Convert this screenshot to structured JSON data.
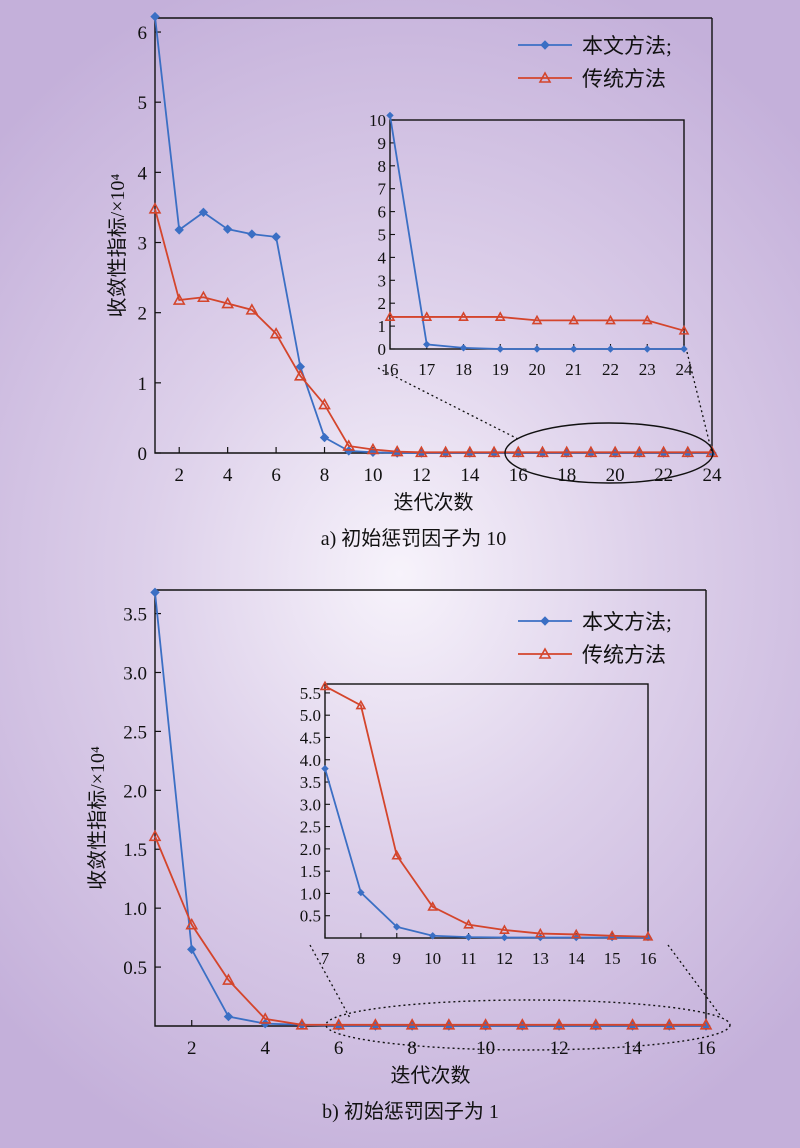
{
  "chart_data": [
    {
      "type": "line",
      "caption": "a) 初始惩罚因子为 10",
      "xlabel": "迭代次数",
      "ylabel": "收敛性指标/×10⁴",
      "xlim": [
        1,
        24
      ],
      "ylim": [
        0,
        6.2
      ],
      "xticks": [
        2,
        4,
        6,
        8,
        10,
        12,
        14,
        16,
        18,
        20,
        22,
        24
      ],
      "yticks": [
        0,
        1,
        2,
        3,
        4,
        5,
        6
      ],
      "legend_position": "top-right",
      "series": [
        {
          "name": "本文方法;",
          "color": "#3b6fc4",
          "marker": "diamond",
          "x": [
            1,
            2,
            3,
            4,
            5,
            6,
            7,
            8,
            9,
            10,
            11,
            12,
            13,
            14,
            15,
            16,
            17,
            18,
            19,
            20,
            21,
            22,
            23,
            24
          ],
          "y": [
            6.22,
            3.18,
            3.43,
            3.19,
            3.12,
            3.08,
            1.23,
            0.22,
            0.03,
            0.01,
            0,
            0,
            0,
            0,
            0,
            0,
            0,
            0,
            0,
            0,
            0,
            0,
            0,
            0
          ]
        },
        {
          "name": "传统方法",
          "color": "#d4452c",
          "marker": "triangle",
          "x": [
            1,
            2,
            3,
            4,
            5,
            6,
            7,
            8,
            9,
            10,
            11,
            12,
            13,
            14,
            15,
            16,
            17,
            18,
            19,
            20,
            21,
            22,
            23,
            24
          ],
          "y": [
            3.48,
            2.18,
            2.22,
            2.13,
            2.04,
            1.7,
            1.1,
            0.69,
            0.1,
            0.05,
            0.02,
            0.01,
            0.01,
            0.01,
            0.01,
            0.01,
            0.01,
            0.01,
            0.01,
            0.01,
            0.01,
            0.01,
            0.01,
            0.01
          ]
        }
      ],
      "inset": {
        "xlim": [
          16,
          24
        ],
        "ylim": [
          0,
          10
        ],
        "xticks": [
          16,
          17,
          18,
          19,
          20,
          21,
          22,
          23,
          24
        ],
        "yticks": [
          0,
          1,
          2,
          3,
          4,
          5,
          6,
          7,
          8,
          9,
          10
        ],
        "series": [
          {
            "name": "本文方法;",
            "x": [
              16,
              17,
              18,
              19,
              20,
              21,
              22,
              23,
              24
            ],
            "y": [
              10.2,
              0.2,
              0.05,
              0,
              0,
              0,
              0,
              0,
              0
            ]
          },
          {
            "name": "传统方法",
            "x": [
              16,
              17,
              18,
              19,
              20,
              21,
              22,
              23,
              24
            ],
            "y": [
              1.4,
              1.4,
              1.4,
              1.4,
              1.25,
              1.25,
              1.25,
              1.25,
              0.8
            ]
          }
        ]
      }
    },
    {
      "type": "line",
      "caption": "b) 初始惩罚因子为 1",
      "xlabel": "迭代次数",
      "ylabel": "收敛性指标/×10⁴",
      "xlim": [
        1,
        16
      ],
      "ylim": [
        0,
        3.7
      ],
      "xticks": [
        2,
        4,
        6,
        8,
        10,
        12,
        14,
        16
      ],
      "yticks": [
        0.5,
        1.0,
        1.5,
        2.0,
        2.5,
        3.0,
        3.5
      ],
      "legend_position": "top-right",
      "series": [
        {
          "name": "本文方法;",
          "color": "#3b6fc4",
          "marker": "diamond",
          "x": [
            1,
            2,
            3,
            4,
            5,
            6,
            7,
            8,
            9,
            10,
            11,
            12,
            13,
            14,
            15,
            16
          ],
          "y": [
            3.68,
            0.65,
            0.08,
            0.02,
            0.01,
            0,
            0,
            0,
            0,
            0,
            0,
            0,
            0,
            0,
            0,
            0
          ]
        },
        {
          "name": "传统方法",
          "color": "#d4452c",
          "marker": "triangle",
          "x": [
            1,
            2,
            3,
            4,
            5,
            6,
            7,
            8,
            9,
            10,
            11,
            12,
            13,
            14,
            15,
            16
          ],
          "y": [
            1.61,
            0.86,
            0.39,
            0.06,
            0.01,
            0.01,
            0.01,
            0.01,
            0.01,
            0.01,
            0.01,
            0.01,
            0.01,
            0.01,
            0.01,
            0.01
          ]
        }
      ],
      "inset": {
        "xlim": [
          7,
          16
        ],
        "ylim": [
          0,
          5.7
        ],
        "xticks": [
          7,
          8,
          9,
          10,
          11,
          12,
          13,
          14,
          15,
          16
        ],
        "yticks": [
          0.5,
          1.0,
          1.5,
          2.0,
          2.5,
          3.0,
          3.5,
          4.0,
          4.5,
          5.0,
          5.5
        ],
        "series": [
          {
            "name": "本文方法;",
            "x": [
              7,
              8,
              9,
              10,
              11,
              12,
              13,
              14,
              15,
              16
            ],
            "y": [
              3.8,
              1.02,
              0.25,
              0.05,
              0.02,
              0.01,
              0.01,
              0.01,
              0.01,
              0.01
            ]
          },
          {
            "name": "传统方法",
            "x": [
              7,
              8,
              9,
              10,
              11,
              12,
              13,
              14,
              15,
              16
            ],
            "y": [
              5.65,
              5.22,
              1.85,
              0.7,
              0.3,
              0.18,
              0.1,
              0.08,
              0.05,
              0.03
            ]
          }
        ]
      }
    }
  ]
}
